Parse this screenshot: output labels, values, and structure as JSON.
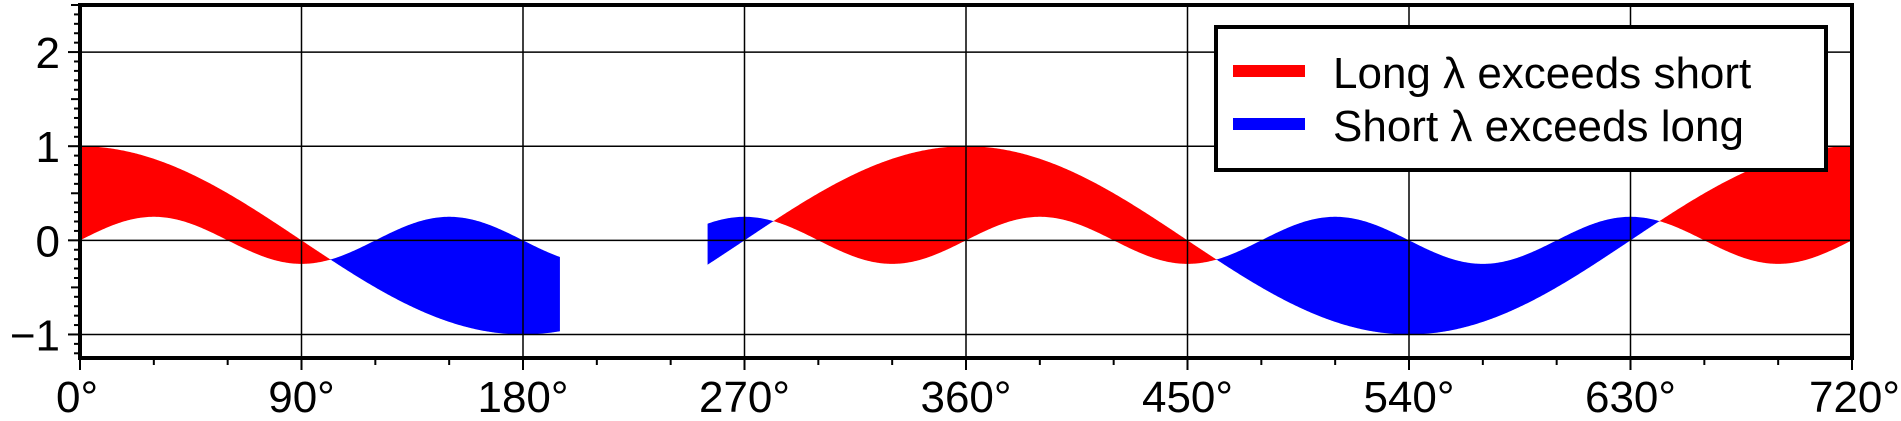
{
  "chart_data": {
    "type": "area",
    "xlim": [
      0,
      720
    ],
    "ylim": [
      -1.25,
      2.5
    ],
    "grid": true,
    "legend_position": "top-right",
    "x_ticks": [
      0,
      90,
      180,
      270,
      360,
      450,
      540,
      630,
      720
    ],
    "x_tick_labels": [
      "0°",
      "90°",
      "180°",
      "270°",
      "360°",
      "450°",
      "540°",
      "630°",
      "720°"
    ],
    "y_ticks": [
      -1,
      0,
      1,
      2
    ],
    "y_tick_labels": [
      "−1",
      "0",
      "1",
      "2"
    ],
    "curves": {
      "long": "cos(x)",
      "short": "0.25*sin(3x)"
    },
    "gap": [
      195,
      255
    ],
    "series": [
      {
        "name": "Long λ exceeds short",
        "color": "#ff0000"
      },
      {
        "name": "Short λ exceeds long",
        "color": "#0000ff"
      }
    ]
  }
}
